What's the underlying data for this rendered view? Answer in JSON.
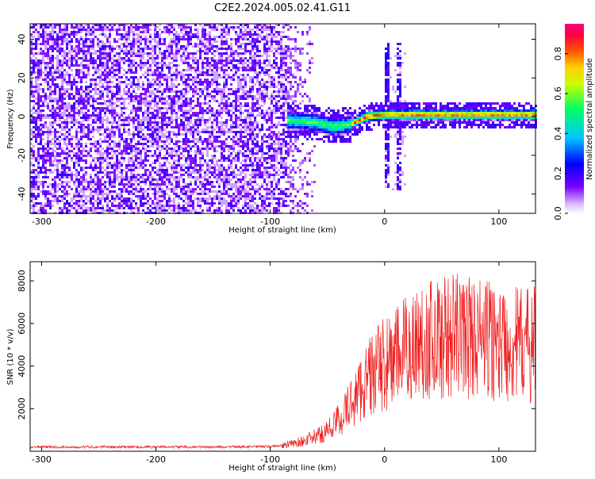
{
  "title": "C2E2.2024.005.02.41.G11",
  "colors": {
    "background": "#ffffff",
    "spectrogram_base": "#6a00ff",
    "snr_line": "#ee2020",
    "colormap": [
      "#ffffff",
      "#d8b8ff",
      "#6a00ff",
      "#0000ff",
      "#00c8ff",
      "#00ff80",
      "#ffff00",
      "#ff8000",
      "#ff0000",
      "#ff0080"
    ]
  },
  "chart_data": [
    {
      "type": "heatmap",
      "xlabel": "Height of straight line (km)",
      "ylabel": "Frequency (Hz)",
      "colorbar_label": "Normalized spectral amplitude",
      "xlim": [
        -310,
        132
      ],
      "ylim": [
        -50,
        48
      ],
      "xticks": [
        -300,
        -200,
        -100,
        0,
        100
      ],
      "yticks": [
        40,
        20,
        0,
        -20,
        -40
      ],
      "colorbar_ticks": [
        0.0,
        0.2,
        0.4,
        0.6,
        0.8
      ],
      "colorbar_range": [
        0,
        0.95
      ],
      "regions": [
        {
          "name": "noise",
          "x": [
            -310,
            -85
          ],
          "y": [
            -50,
            48
          ],
          "amplitude": 0.15
        },
        {
          "name": "signal",
          "x": [
            -85,
            132
          ],
          "frequency_track": [
            [
              -85,
              -2
            ],
            [
              -60,
              -3
            ],
            [
              -45,
              -5
            ],
            [
              -30,
              -4
            ],
            [
              -15,
              0
            ],
            [
              0,
              1
            ],
            [
              20,
              1
            ],
            [
              60,
              1
            ],
            [
              132,
              1
            ]
          ],
          "amplitude": 0.9
        },
        {
          "name": "spike",
          "x": [
            0,
            18
          ],
          "y": [
            -40,
            37
          ],
          "amplitude": 0.3
        }
      ]
    },
    {
      "type": "line",
      "xlabel": "Height of straight line (km)",
      "ylabel": "SNR (10 * v/v)",
      "xlim": [
        -310,
        132
      ],
      "ylim": [
        0,
        8900
      ],
      "xticks": [
        -300,
        -200,
        -100,
        0,
        100
      ],
      "yticks": [
        2000,
        4000,
        6000,
        8000
      ],
      "series": [
        {
          "values": [
            [
              -310,
              200
            ],
            [
              -250,
              200
            ],
            [
              -150,
              200
            ],
            [
              -100,
              220
            ],
            [
              -85,
              300
            ],
            [
              -70,
              500
            ],
            [
              -55,
              800
            ],
            [
              -45,
              1200
            ],
            [
              -35,
              1800
            ],
            [
              -25,
              2600
            ],
            [
              -15,
              3400
            ],
            [
              -5,
              3900
            ],
            [
              5,
              4200
            ],
            [
              15,
              4600
            ],
            [
              25,
              5000
            ],
            [
              40,
              5300
            ],
            [
              55,
              5400
            ],
            [
              70,
              5450
            ],
            [
              85,
              5300
            ],
            [
              100,
              5100
            ],
            [
              115,
              5000
            ],
            [
              132,
              5000
            ]
          ]
        }
      ]
    }
  ]
}
